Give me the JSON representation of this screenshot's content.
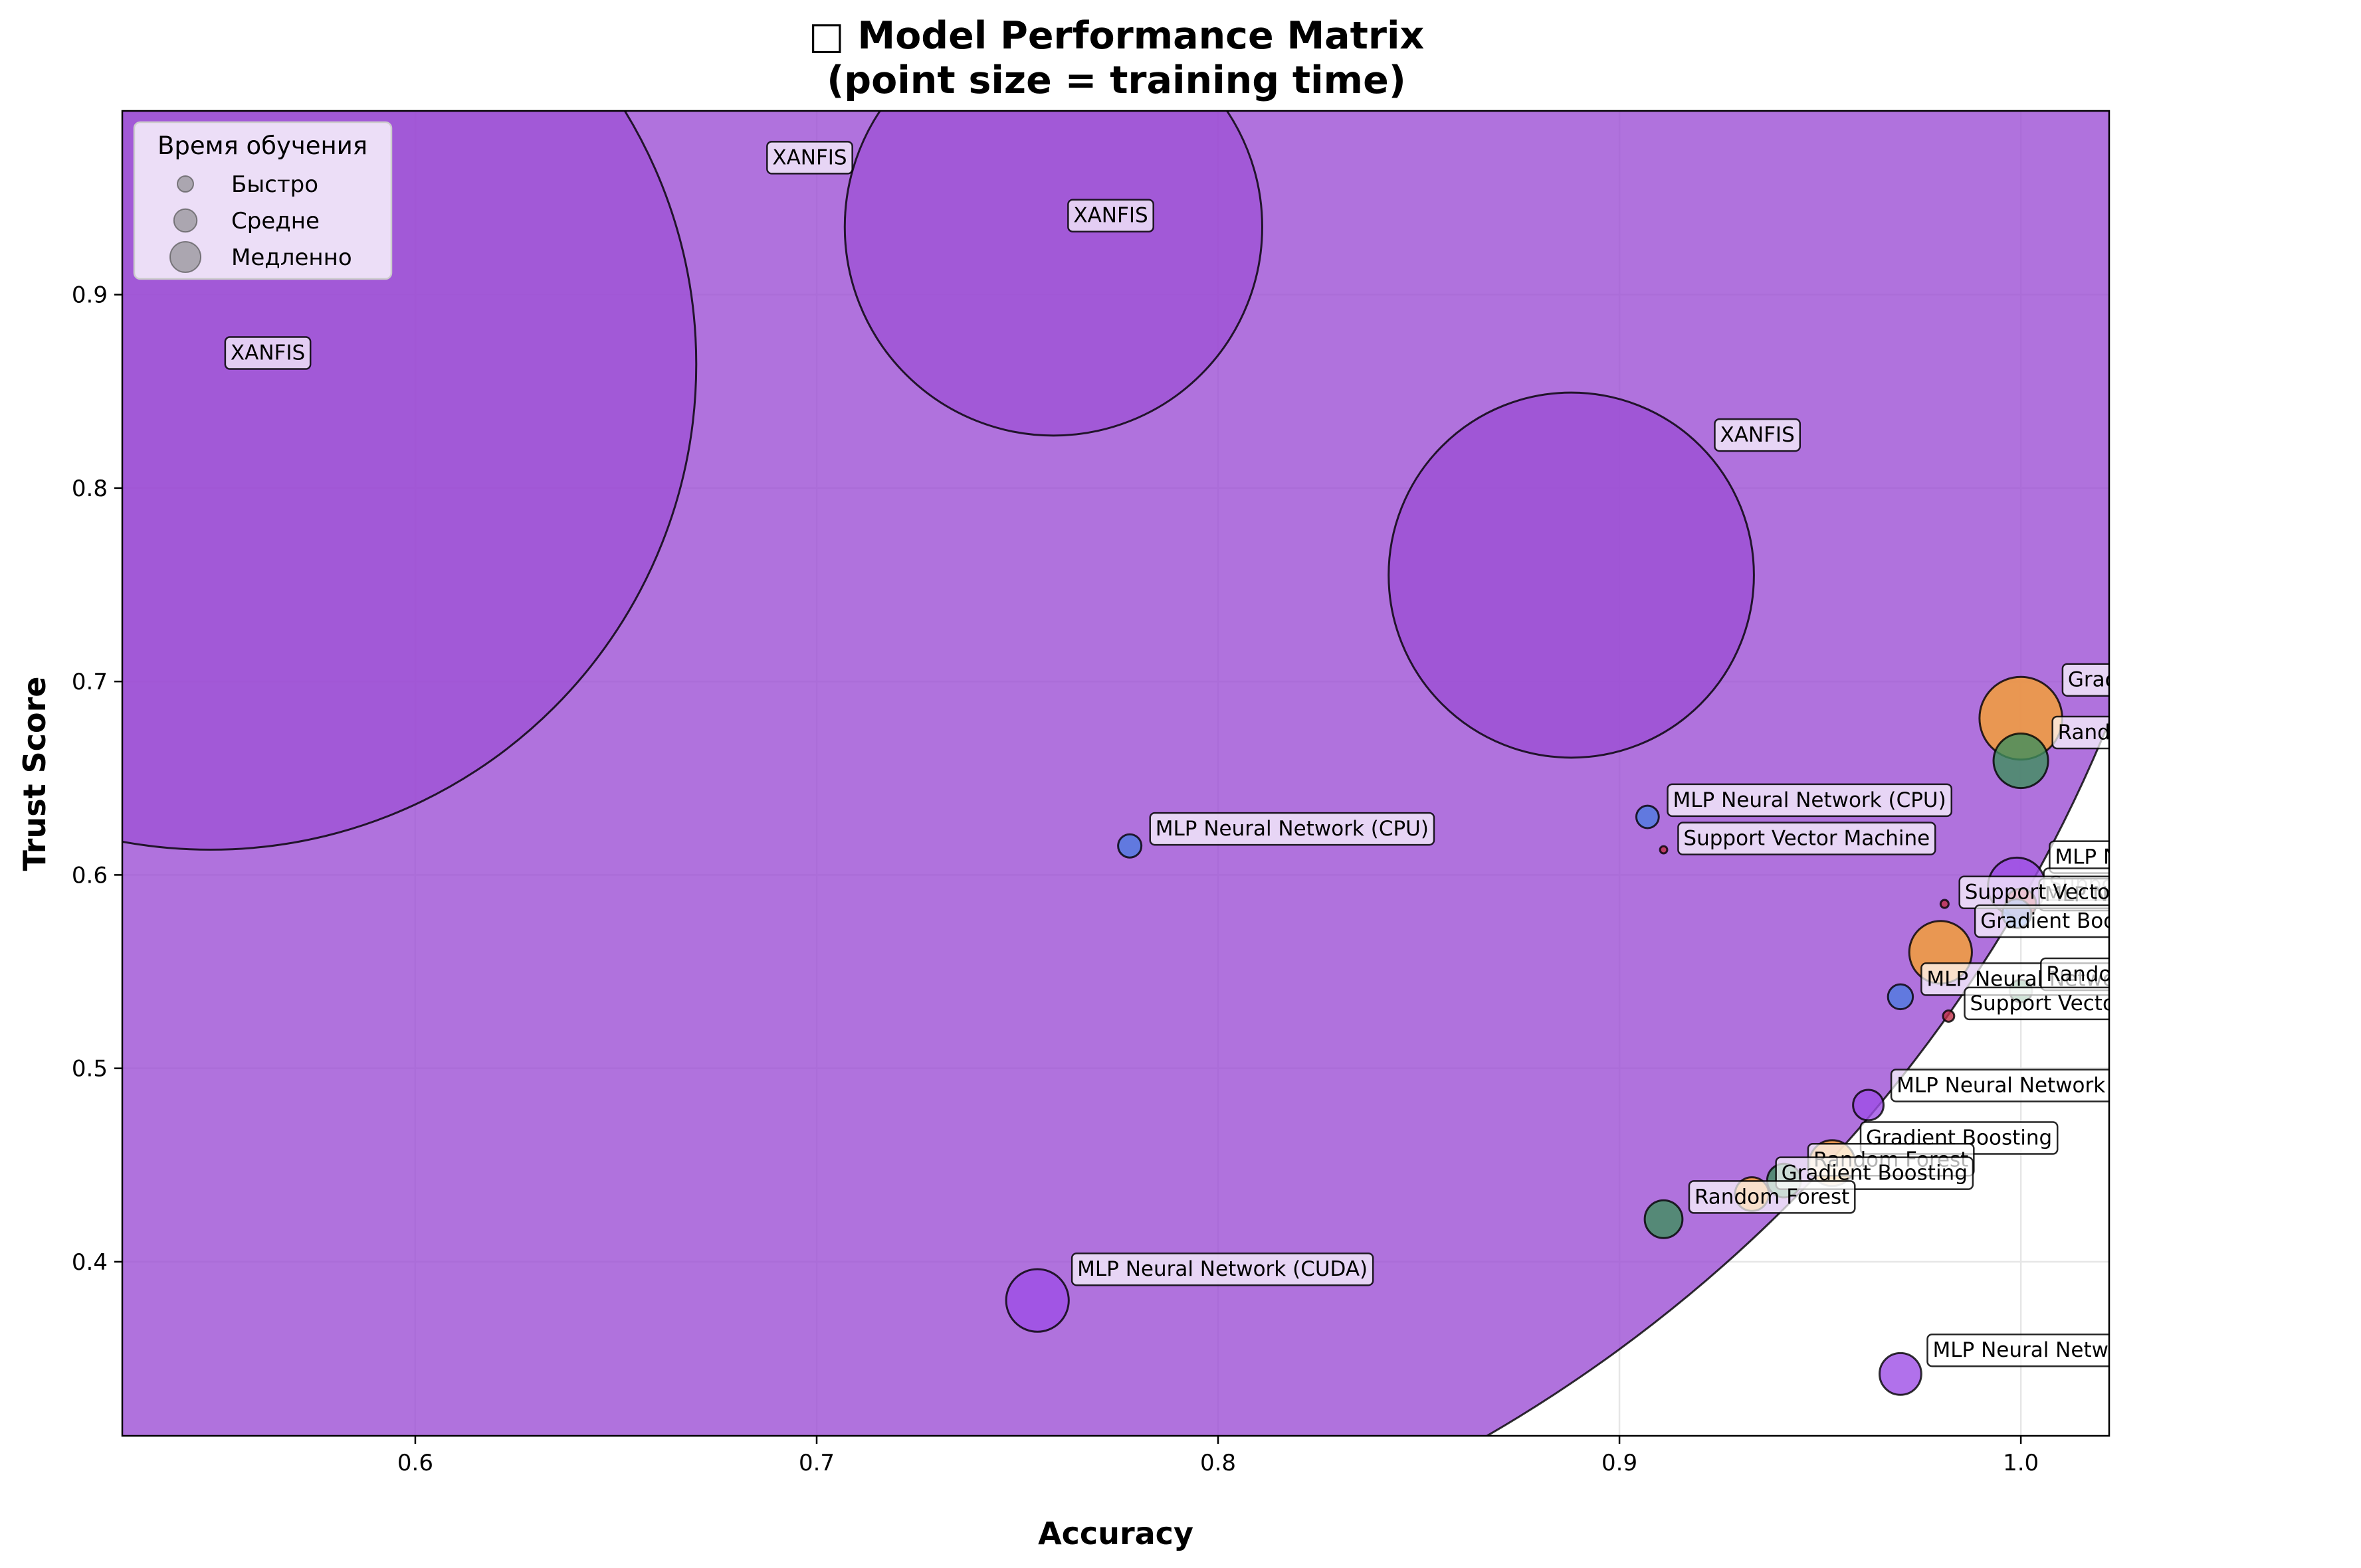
{
  "chart_data": {
    "type": "scatter",
    "title_lines": [
      "□ Model Performance Matrix",
      "(point size = training time)"
    ],
    "xlabel": "Accuracy",
    "ylabel": "Trust Score",
    "xlim": [
      0.527,
      1.022
    ],
    "ylim": [
      0.31,
      0.995
    ],
    "xticks": [
      0.6,
      0.7,
      0.8,
      0.9,
      1.0
    ],
    "xtick_labels": [
      "0.6",
      "0.7",
      "0.8",
      "0.9",
      "1.0"
    ],
    "yticks": [
      0.4,
      0.5,
      0.6,
      0.7,
      0.8,
      0.9
    ],
    "ytick_labels": [
      "0.4",
      "0.5",
      "0.6",
      "0.7",
      "0.8",
      "0.9"
    ],
    "grid": true,
    "colors": {
      "XANFIS": "#9c4fd4",
      "MLP Neural Network (CUDA)": "#9d4ee6",
      "MLP Neural Network (CPU)": "#4d7ae0",
      "Gradient Boosting": "#f7a030",
      "Random Forest": "#3f8f5e",
      "Support Vector Machine": "#c0304a"
    },
    "legend": {
      "title": "Время обучения",
      "placement": "top-left",
      "items": [
        "Быстро",
        "Средне",
        "Медленно"
      ],
      "marker_radii": [
        0.03,
        0.045,
        0.06
      ]
    },
    "points": [
      {
        "label": "XANFIS",
        "x": 0.684,
        "y": 0.965,
        "r": 0.365,
        "alpha": 0.8
      },
      {
        "label": "XANFIS",
        "x": 0.549,
        "y": 0.864,
        "r": 0.121,
        "alpha": 0.7
      },
      {
        "label": "XANFIS",
        "x": 0.759,
        "y": 0.935,
        "r": 0.052,
        "alpha": 0.7
      },
      {
        "label": "XANFIS",
        "x": 0.888,
        "y": 0.755,
        "r": 0.0455,
        "alpha": 0.8
      },
      {
        "label": "Gradient Boosting",
        "x": 1.0,
        "y": 0.681,
        "r": 0.0103,
        "alpha": 0.8
      },
      {
        "label": "Random Forest",
        "x": 1.0,
        "y": 0.659,
        "r": 0.0068,
        "alpha": 0.8
      },
      {
        "label": "MLP Neural Network (CPU)",
        "x": 0.907,
        "y": 0.63,
        "r": 0.0028,
        "alpha": 0.8
      },
      {
        "label": "Support Vector Machine",
        "x": 0.911,
        "y": 0.613,
        "r": 0.0009,
        "alpha": 0.8
      },
      {
        "label": "MLP Neural Network (CPU)",
        "x": 0.778,
        "y": 0.615,
        "r": 0.0029,
        "alpha": 0.8
      },
      {
        "label": "MLP Neural Network (CUDA)",
        "x": 0.999,
        "y": 0.594,
        "r": 0.0072,
        "alpha": 0.8
      },
      {
        "label": "Support Vector Machine",
        "x": 1.0,
        "y": 0.585,
        "r": 0.0038,
        "alpha": 0.8
      },
      {
        "label": "MLP Neural Network (CPU)",
        "x": 0.999,
        "y": 0.58,
        "r": 0.0036,
        "alpha": 0.8
      },
      {
        "label": "Support Vector Machine",
        "x": 0.981,
        "y": 0.585,
        "r": 0.001,
        "alpha": 0.8
      },
      {
        "label": "Gradient Boosting",
        "x": 0.98,
        "y": 0.56,
        "r": 0.0078,
        "alpha": 0.8
      },
      {
        "label": "MLP Neural Network (CPU)",
        "x": 0.97,
        "y": 0.537,
        "r": 0.0031,
        "alpha": 0.8
      },
      {
        "label": "Random Forest",
        "x": 1.0,
        "y": 0.54,
        "r": 0.0028,
        "alpha": 0.8
      },
      {
        "label": "Support Vector Machine",
        "x": 0.982,
        "y": 0.527,
        "r": 0.0014,
        "alpha": 0.8
      },
      {
        "label": "MLP Neural Network (CUDA)",
        "x": 0.962,
        "y": 0.481,
        "r": 0.0038,
        "alpha": 0.8
      },
      {
        "label": "Gradient Boosting",
        "x": 0.953,
        "y": 0.451,
        "r": 0.0057,
        "alpha": 0.8
      },
      {
        "label": "Random Forest",
        "x": 0.941,
        "y": 0.442,
        "r": 0.0042,
        "alpha": 0.8
      },
      {
        "label": "Gradient Boosting",
        "x": 0.933,
        "y": 0.435,
        "r": 0.0042,
        "alpha": 0.8
      },
      {
        "label": "Random Forest",
        "x": 0.911,
        "y": 0.422,
        "r": 0.0047,
        "alpha": 0.8
      },
      {
        "label": "MLP Neural Network (CUDA)",
        "x": 0.755,
        "y": 0.38,
        "r": 0.0078,
        "alpha": 0.8
      },
      {
        "label": "MLP Neural Network (CUDA)",
        "x": 0.97,
        "y": 0.342,
        "r": 0.0052,
        "alpha": 0.8
      }
    ]
  }
}
